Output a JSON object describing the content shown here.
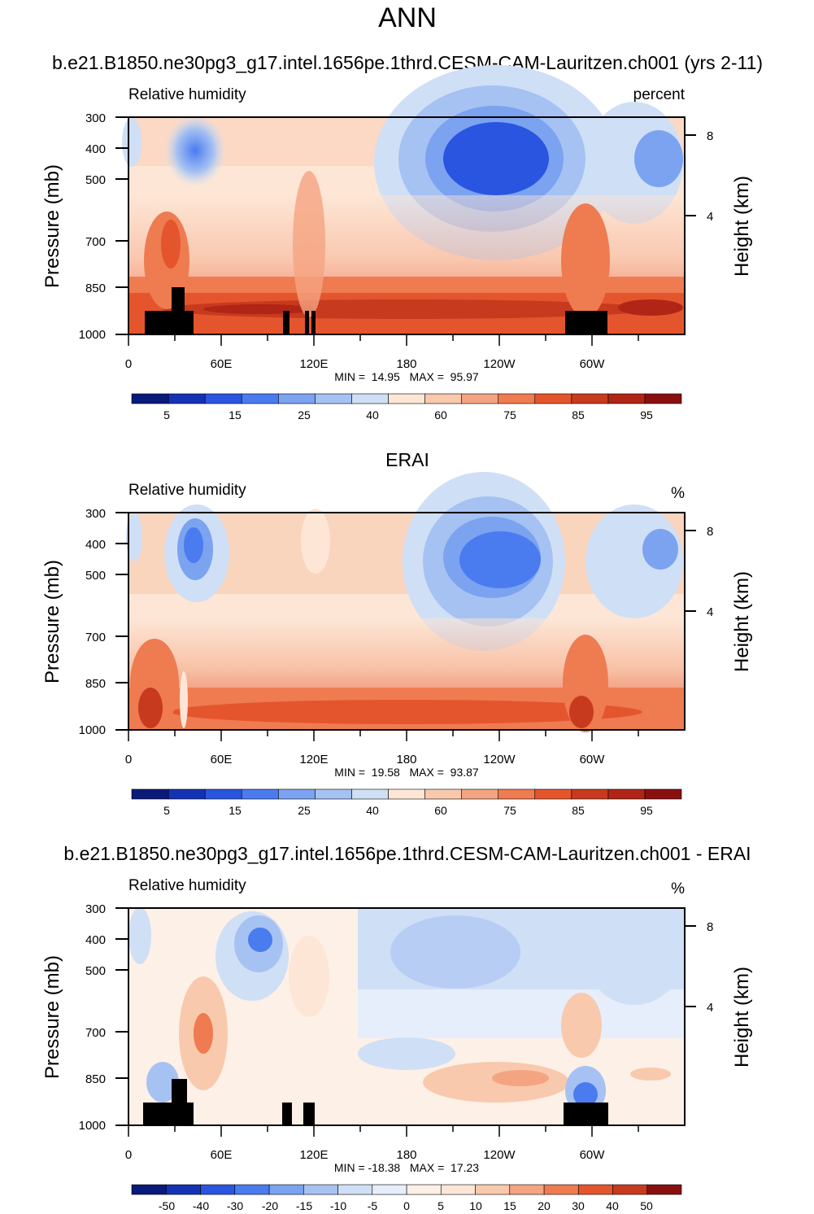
{
  "figure": {
    "title": "ANN",
    "case_name": "b.e21.B1850.ne30pg3_g17.intel.1656pe.1thrd.CESM-CAM-Lauritzen.ch001 (yrs 2-11)"
  },
  "chart_data": [
    {
      "type": "heatmap",
      "panel_title": "",
      "variable": "Relative humidity",
      "units": "percent",
      "ylabel": "Pressure (mb)",
      "ylabel_right": "Height (km)",
      "y_ticks": [
        "300",
        "400",
        "500",
        "700",
        "850",
        "1000"
      ],
      "y_ticks_right": [
        "8",
        "4"
      ],
      "x_ticks": [
        "0",
        "60E",
        "120E",
        "180",
        "120W",
        "60W"
      ],
      "stats": "MIN =  14.95   MAX =  95.97",
      "colorbar_labels": [
        "5",
        "15",
        "25",
        "40",
        "60",
        "75",
        "85",
        "95"
      ],
      "colorbar_colors": [
        "#0a1a7a",
        "#1432b4",
        "#2a55e0",
        "#4a7cf0",
        "#7ba3f0",
        "#a6c2f2",
        "#cfdff6",
        "#fde6d6",
        "#f9c9ad",
        "#f5a481",
        "#ef7b51",
        "#e5552d",
        "#c83a1e",
        "#b02515",
        "#8a1010"
      ],
      "min": 14.95,
      "max": 95.97
    },
    {
      "type": "heatmap",
      "panel_title": "ERAI",
      "variable": "Relative humidity",
      "units": "%",
      "ylabel": "Pressure (mb)",
      "ylabel_right": "Height (km)",
      "y_ticks": [
        "300",
        "400",
        "500",
        "700",
        "850",
        "1000"
      ],
      "y_ticks_right": [
        "8",
        "4"
      ],
      "x_ticks": [
        "0",
        "60E",
        "120E",
        "180",
        "120W",
        "60W"
      ],
      "stats": "MIN =  19.58   MAX =  93.87",
      "colorbar_labels": [
        "5",
        "15",
        "25",
        "40",
        "60",
        "75",
        "85",
        "95"
      ],
      "colorbar_colors": [
        "#0a1a7a",
        "#1432b4",
        "#2a55e0",
        "#4a7cf0",
        "#7ba3f0",
        "#a6c2f2",
        "#cfdff6",
        "#fde6d6",
        "#f9c9ad",
        "#f5a481",
        "#ef7b51",
        "#e5552d",
        "#c83a1e",
        "#b02515",
        "#8a1010"
      ],
      "min": 19.58,
      "max": 93.87
    },
    {
      "type": "heatmap",
      "panel_title": "b.e21.B1850.ne30pg3_g17.intel.1656pe.1thrd.CESM-CAM-Lauritzen.ch001 - ERAI",
      "variable": "Relative humidity",
      "units": "%",
      "ylabel": "Pressure (mb)",
      "ylabel_right": "Height (km)",
      "y_ticks": [
        "300",
        "400",
        "500",
        "700",
        "850",
        "1000"
      ],
      "y_ticks_right": [
        "8",
        "4"
      ],
      "x_ticks": [
        "0",
        "60E",
        "120E",
        "180",
        "120W",
        "60W"
      ],
      "stats": "MIN = -18.38   MAX =  17.23",
      "colorbar_labels": [
        "-50",
        "-40",
        "-30",
        "-20",
        "-15",
        "-10",
        "-5",
        "0",
        "5",
        "10",
        "15",
        "20",
        "30",
        "40",
        "50"
      ],
      "colorbar_colors": [
        "#0a1a7a",
        "#1432b4",
        "#2a55e0",
        "#4a7cf0",
        "#7ba3f0",
        "#a6c2f2",
        "#cfdff6",
        "#e6eefb",
        "#fdf0e6",
        "#fde6d6",
        "#f9c9ad",
        "#f5a481",
        "#ef7b51",
        "#e5552d",
        "#c83a1e",
        "#8a1010"
      ],
      "min": -18.38,
      "max": 17.23
    }
  ]
}
